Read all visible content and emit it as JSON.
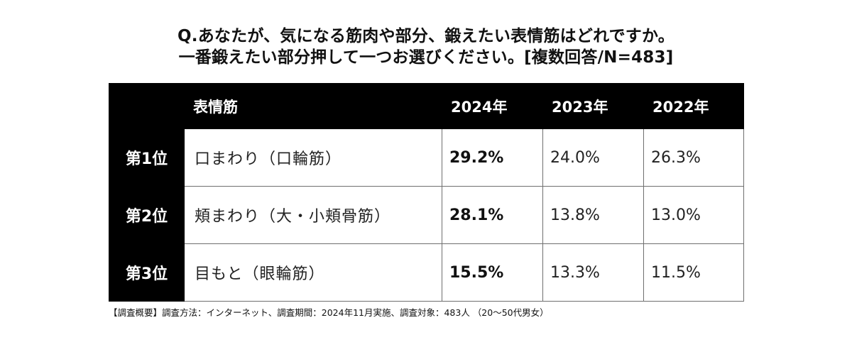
{
  "title": {
    "line1": "Q.あなたが、気になる筋肉や部分、鍛えたい表情筋はどれですか。",
    "line2": "一番鍛えたい部分押して一つお選びください。[複数回答/N=483]"
  },
  "chart_data": {
    "type": "table",
    "columns": [
      "",
      "表情筋",
      "2024年",
      "2023年",
      "2022年"
    ],
    "rows": [
      {
        "rank": "第1位",
        "name": "口まわり（口輪筋）",
        "v2024": "29.2%",
        "v2023": "24.0%",
        "v2022": "26.3%"
      },
      {
        "rank": "第2位",
        "name": "頬まわり（大・小頬骨筋）",
        "v2024": "28.1%",
        "v2023": "13.8%",
        "v2022": "13.0%"
      },
      {
        "rank": "第3位",
        "name": "目もと（眼輪筋）",
        "v2024": "15.5%",
        "v2023": "13.3%",
        "v2022": "11.5%"
      }
    ]
  },
  "footnote": "【調査概要】調査方法：インターネット、調査期間：2024年11月実施、調査対象：483人 （20～50代男女）",
  "colors": {
    "header_bg": "#000000",
    "header_text": "#ffffff",
    "rank_bg": "#000000",
    "grid": "#6f6f6f"
  }
}
